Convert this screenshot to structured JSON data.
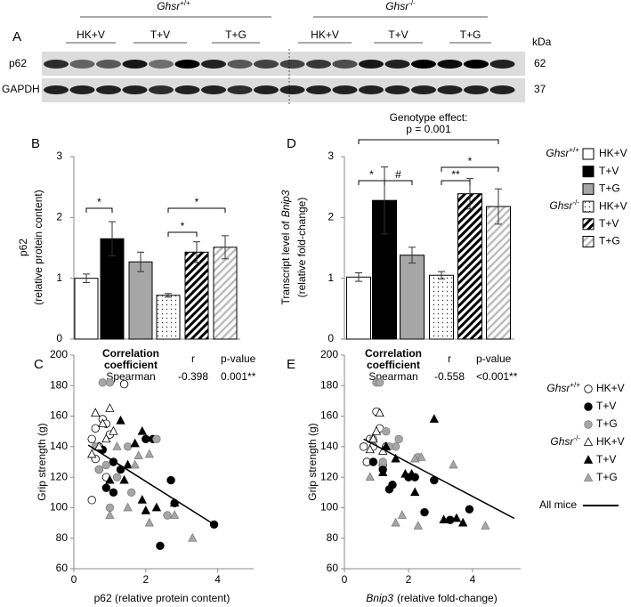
{
  "blot": {
    "panel": "A",
    "genotypes": [
      {
        "name": "Ghsr",
        "sup": "+/+"
      },
      {
        "name": "Ghsr",
        "sup": "-/-"
      }
    ],
    "groups": [
      "HK+V",
      "T+V",
      "T+G",
      "HK+V",
      "T+V",
      "T+G"
    ],
    "unit": "kDa",
    "rows": [
      {
        "label": "p62",
        "kda": "62"
      },
      {
        "label": "GAPDH",
        "kda": "37"
      }
    ]
  },
  "chart_data": [
    {
      "type": "bar",
      "panel": "B",
      "ylabel": [
        [
          "p62"
        ],
        [
          "(relative protein content)"
        ]
      ],
      "ylabel_italic": [
        [
          false
        ],
        [
          false
        ]
      ],
      "ylim": [
        0,
        3
      ],
      "yticks": [
        0,
        1,
        2,
        3
      ],
      "values": [
        1.0,
        1.65,
        1.27,
        0.72,
        1.43,
        1.51
      ],
      "errors": [
        0.07,
        0.28,
        0.16,
        0.03,
        0.17,
        0.19
      ],
      "colors": [
        "#ffffff",
        "#000000",
        "#a6a6a6",
        "#ffffff",
        "#ffffff",
        "#ffffff"
      ],
      "patterns": [
        "none",
        "none",
        "none",
        "dots",
        "hatch",
        "hatch-light"
      ],
      "significance": [
        {
          "bars": [
            0,
            1
          ],
          "label": "*"
        },
        {
          "bars": [
            3,
            4
          ],
          "label": "*"
        },
        {
          "bars": [
            3,
            5
          ],
          "label": "*"
        }
      ]
    },
    {
      "type": "bar",
      "panel": "D",
      "ylabel": [
        [
          "Transcript level of",
          "Bnip3"
        ],
        [
          "(relative fold-change)"
        ]
      ],
      "ylabel_italic": [
        [
          false,
          true
        ],
        [
          false
        ]
      ],
      "ylim": [
        0,
        3
      ],
      "yticks": [
        0,
        1,
        2,
        3
      ],
      "values": [
        1.02,
        2.28,
        1.38,
        1.05,
        2.39,
        2.18
      ],
      "errors": [
        0.07,
        0.55,
        0.13,
        0.06,
        0.25,
        0.29
      ],
      "colors": [
        "#ffffff",
        "#000000",
        "#a6a6a6",
        "#ffffff",
        "#ffffff",
        "#ffffff"
      ],
      "patterns": [
        "none",
        "none",
        "none",
        "dots",
        "hatch",
        "hatch-light"
      ],
      "significance": [
        {
          "bars": [
            0,
            1
          ],
          "label": "*"
        },
        {
          "bars": [
            1,
            2
          ],
          "label": "#"
        },
        {
          "bars": [
            3,
            4
          ],
          "label": "**"
        },
        {
          "bars": [
            3,
            5
          ],
          "label": "*"
        }
      ],
      "annotation": {
        "lines": [
          "Genotype effect:",
          "p = 0.001"
        ],
        "bars": [
          0,
          5
        ]
      },
      "legend": [
        {
          "genotype": {
            "name": "Ghsr",
            "sup": "+/+"
          },
          "entries": [
            "HK+V",
            "T+V",
            "T+G"
          ]
        },
        {
          "genotype": {
            "name": "Ghsr",
            "sup": "-/-"
          },
          "entries": [
            "HK+V",
            "T+V",
            "T+G"
          ]
        }
      ]
    },
    {
      "type": "scatter",
      "panel": "C",
      "xlabel": [
        [
          "p62 (relative protein content)"
        ]
      ],
      "xlabel_italic": [
        [
          false
        ]
      ],
      "ylabel": [
        [
          "Grip strength (g)"
        ]
      ],
      "ylabel_italic": [
        [
          false
        ]
      ],
      "xlim": [
        0,
        5
      ],
      "xticks": [
        0,
        2,
        4
      ],
      "ylim": [
        60,
        200
      ],
      "yticks": [
        60,
        80,
        100,
        120,
        140,
        160,
        180,
        200
      ],
      "table": {
        "header": [
          "Correlation",
          "coefficient"
        ],
        "columns": [
          "r",
          "p-value"
        ],
        "row": [
          "Spearman",
          "-0.398",
          "0.001**"
        ]
      },
      "series": [
        {
          "marker": "circle",
          "color": "#ffffff",
          "x": [
            0.6,
            0.8,
            0.9,
            1.0,
            0.7,
            0.5,
            1.4,
            0.6,
            0.5,
            0.9,
            0.7
          ],
          "y": [
            152,
            158,
            155,
            148,
            140,
            145,
            181,
            132,
            105,
            120,
            125
          ]
        },
        {
          "marker": "circle",
          "color": "#000000",
          "x": [
            0.9,
            1.1,
            1.3,
            0.8,
            2.0,
            2.2,
            2.7,
            2.8,
            2.4,
            3.9,
            1.1
          ],
          "y": [
            113,
            110,
            125,
            138,
            145,
            145,
            118,
            103,
            75,
            89,
            130
          ]
        },
        {
          "marker": "circle",
          "color": "#a6a6a6",
          "x": [
            0.8,
            1.0,
            0.6,
            0.9,
            1.2,
            1.6,
            1.5,
            2.3,
            2.6,
            0.7,
            1.0
          ],
          "y": [
            182,
            182,
            140,
            128,
            120,
            110,
            140,
            145,
            95,
            125,
            100
          ]
        },
        {
          "marker": "triangle",
          "color": "#ffffff",
          "x": [
            0.6,
            0.8,
            1.0,
            0.7,
            0.5,
            1.1,
            0.9
          ],
          "y": [
            162,
            155,
            165,
            140,
            135,
            150,
            145
          ]
        },
        {
          "marker": "triangle",
          "color": "#000000",
          "x": [
            1.3,
            1.7,
            1.9,
            1.5,
            1.9,
            2.3,
            2.8,
            2.0,
            1.4,
            1.0
          ],
          "y": [
            157,
            142,
            150,
            128,
            105,
            100,
            103,
            98,
            118,
            118
          ]
        },
        {
          "marker": "triangle",
          "color": "#a6a6a6",
          "x": [
            1.2,
            1.7,
            1.8,
            1.5,
            1.0,
            2.1,
            3.3,
            2.1,
            2.8
          ],
          "y": [
            140,
            128,
            134,
            100,
            95,
            90,
            80,
            135,
            95
          ]
        }
      ],
      "trend": {
        "x": [
          0.4,
          3.9
        ],
        "y": [
          141,
          89
        ]
      }
    },
    {
      "type": "scatter",
      "panel": "E",
      "xlabel": [
        [
          "Bnip3",
          "(relative fold-change)"
        ]
      ],
      "xlabel_italic": [
        [
          true,
          false
        ]
      ],
      "ylabel": [
        [
          "Grip strength (g)"
        ]
      ],
      "ylabel_italic": [
        [
          false
        ]
      ],
      "xlim": [
        0,
        5.5
      ],
      "xticks": [
        0,
        2,
        4
      ],
      "ylim": [
        60,
        200
      ],
      "yticks": [
        60,
        80,
        100,
        120,
        140,
        160,
        180,
        200
      ],
      "table": {
        "header": [
          "Correlation",
          "coefficient"
        ],
        "columns": [
          "r",
          "p-value"
        ],
        "row": [
          "Spearman",
          "-0.558",
          "<0.001**"
        ]
      },
      "series": [
        {
          "marker": "circle",
          "color": "#ffffff",
          "x": [
            0.7,
            1.0,
            1.1,
            0.9,
            1.2,
            0.8,
            1.3,
            0.6
          ],
          "y": [
            130,
            163,
            152,
            140,
            128,
            145,
            140,
            140
          ]
        },
        {
          "marker": "circle",
          "color": "#000000",
          "x": [
            0.9,
            1.4,
            1.5,
            1.2,
            2.2,
            2.8,
            2.5,
            3.3,
            3.9,
            2.0
          ],
          "y": [
            130,
            112,
            115,
            125,
            120,
            118,
            97,
            92,
            99,
            120
          ]
        },
        {
          "marker": "circle",
          "color": "#a6a6a6",
          "x": [
            1.0,
            1.1,
            1.3,
            1.6,
            1.4,
            2.3,
            1.2,
            1.7,
            0.9
          ],
          "y": [
            182,
            182,
            150,
            140,
            140,
            133,
            130,
            145,
            145
          ]
        },
        {
          "marker": "triangle",
          "color": "#ffffff",
          "x": [
            0.9,
            1.0,
            1.1,
            1.2,
            0.8
          ],
          "y": [
            145,
            150,
            162,
            137,
            138
          ]
        },
        {
          "marker": "triangle",
          "color": "#000000",
          "x": [
            1.3,
            1.6,
            1.9,
            2.1,
            2.8,
            3.1,
            3.5,
            3.7,
            1.2,
            2.2
          ],
          "y": [
            140,
            132,
            122,
            122,
            158,
            92,
            93,
            90,
            123,
            110
          ]
        },
        {
          "marker": "triangle",
          "color": "#a6a6a6",
          "x": [
            0.8,
            1.6,
            2.3,
            2.4,
            3.4,
            1.8,
            4.4,
            2.2
          ],
          "y": [
            120,
            90,
            88,
            133,
            128,
            95,
            88,
            132
          ]
        }
      ],
      "trend": {
        "x": [
          0.6,
          5.3
        ],
        "y": [
          145,
          93
        ]
      },
      "legend": {
        "groups": [
          {
            "genotype": {
              "name": "Ghsr",
              "sup": "+/+"
            },
            "entries": [
              "HK+V",
              "T+V",
              "T+G"
            ]
          },
          {
            "genotype": {
              "name": "Ghsr",
              "sup": "-/-"
            },
            "entries": [
              "HK+V",
              "T+V",
              "T+G"
            ]
          }
        ],
        "trend": "All mice"
      }
    }
  ]
}
